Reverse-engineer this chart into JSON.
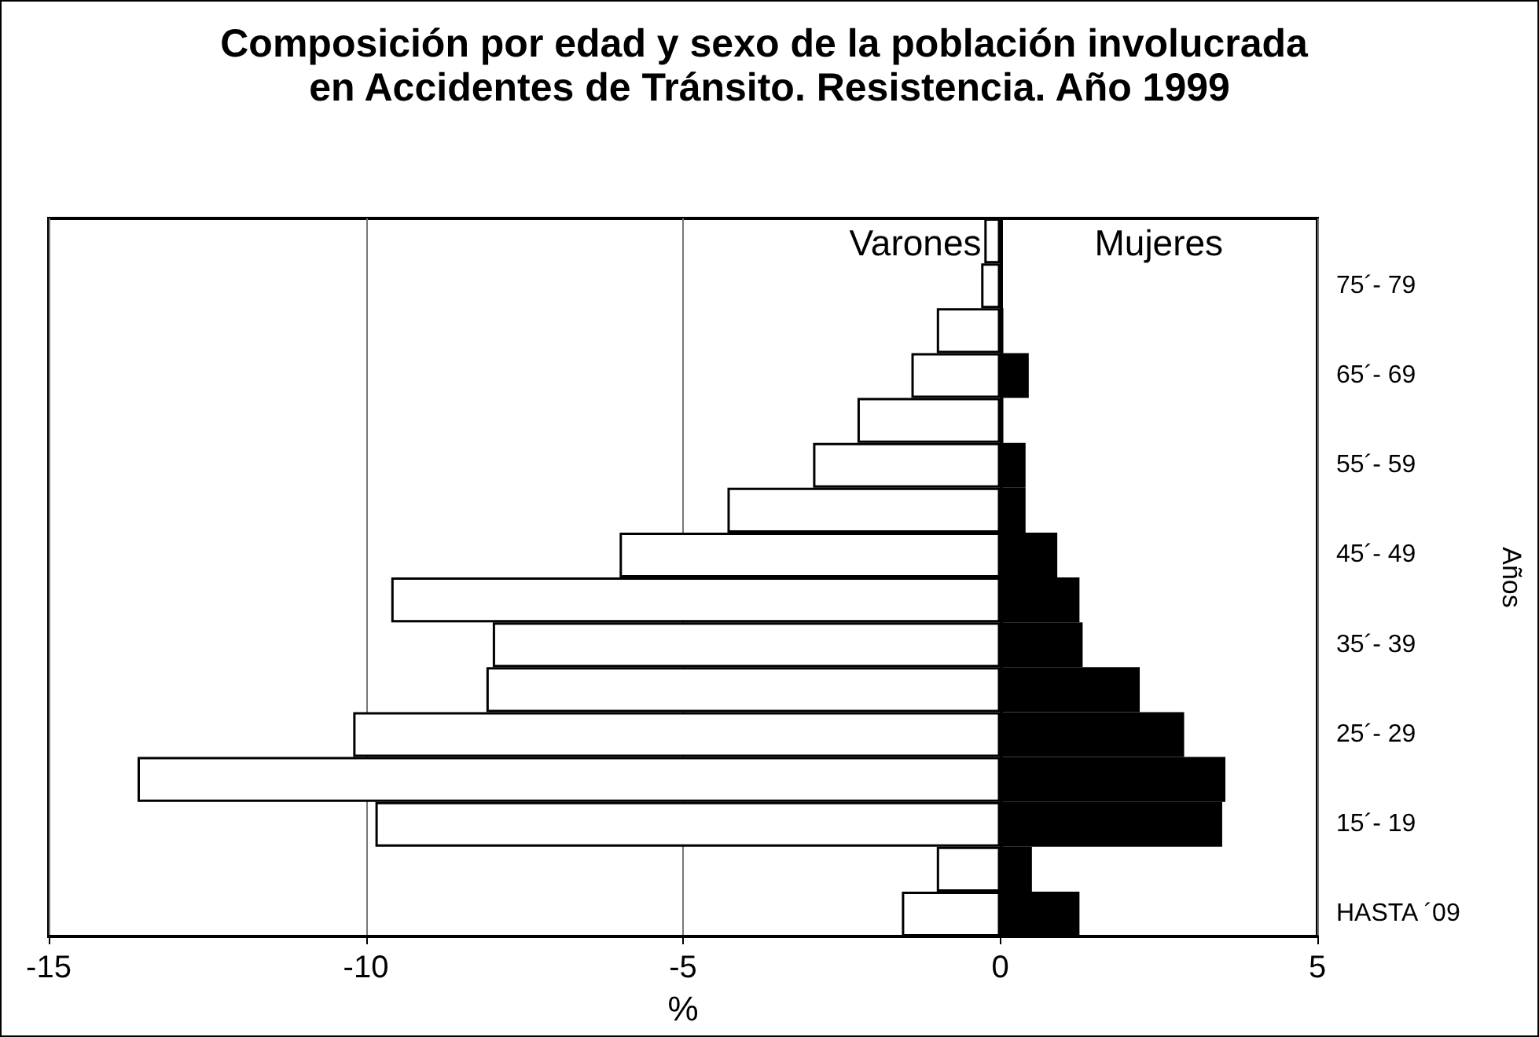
{
  "chart_data": {
    "type": "bar",
    "orientation": "horizontal",
    "stacked": true,
    "title": "Composición por edad y sexo de la población involucrada en Accidentes de Tránsito. Resistencia. Año 1999",
    "xlabel": "%",
    "ylabel": "Años",
    "categories": [
      null,
      "75´- 79",
      null,
      "65´- 69",
      null,
      "55´- 59",
      null,
      "45´- 49",
      null,
      "35´- 39",
      null,
      "25´- 29",
      null,
      "15´- 19",
      null,
      "HASTA ´09"
    ],
    "series": [
      {
        "name": "Varones",
        "color": "#ffffff",
        "values": [
          -0.25,
          -0.3,
          -1.0,
          -1.4,
          -2.25,
          -2.95,
          -4.3,
          -6.0,
          -9.6,
          -8.0,
          -8.1,
          -10.2,
          -13.6,
          -9.85,
          -1.0,
          -1.55
        ]
      },
      {
        "name": "Mujeres",
        "color": "#000000",
        "values": [
          null,
          null,
          0.05,
          0.45,
          0.05,
          0.4,
          0.4,
          0.9,
          1.25,
          1.3,
          2.2,
          2.9,
          3.55,
          3.5,
          0.5,
          1.25
        ]
      }
    ],
    "xlim": [
      -15,
      5
    ],
    "xticks": [
      -15,
      -10,
      -5,
      0,
      5
    ],
    "grid": "x",
    "legend": false
  }
}
